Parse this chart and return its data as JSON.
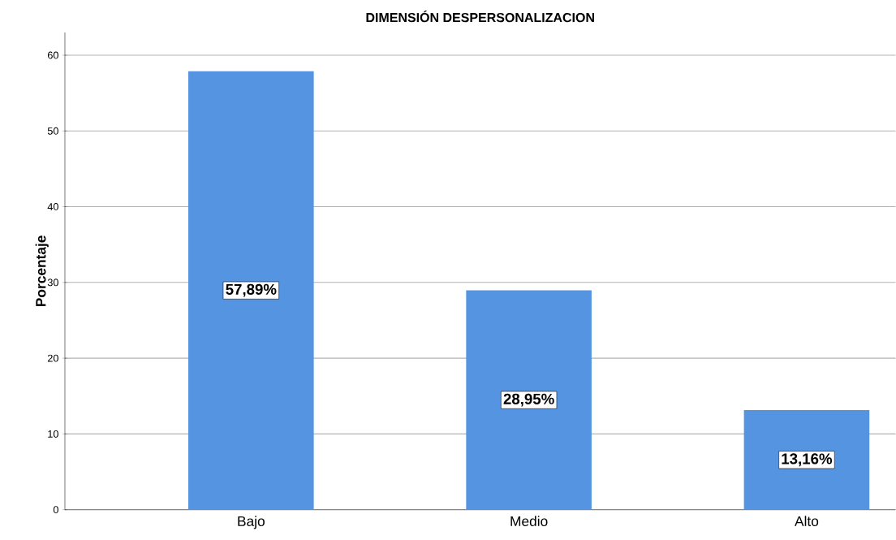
{
  "chart_data": {
    "type": "bar",
    "title": "DIMENSIÓN DESPERSONALIZACION",
    "ylabel": "Porcentaje",
    "categories": [
      "Bajo",
      "Medio",
      "Alto"
    ],
    "values": [
      57.89,
      28.95,
      13.16
    ],
    "value_labels": [
      "57,89%",
      "28,95%",
      "13,16%"
    ],
    "color": "#5594e0",
    "ylim": [
      0,
      63
    ],
    "yticks": [
      0,
      10,
      20,
      30,
      40,
      50,
      60
    ],
    "grid": "y"
  }
}
